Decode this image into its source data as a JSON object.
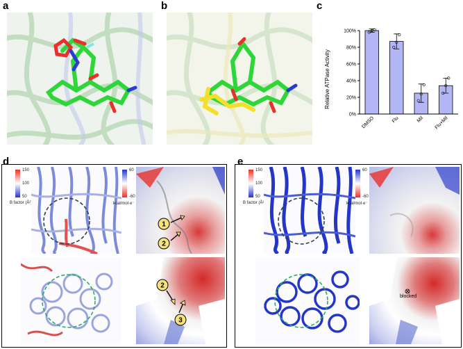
{
  "panels": {
    "a": {
      "label": "a"
    },
    "b": {
      "label": "b"
    },
    "c": {
      "label": "c"
    },
    "d": {
      "label": "d"
    },
    "e": {
      "label": "e"
    }
  },
  "chart_data": {
    "type": "bar",
    "categories": [
      "DMSO",
      "Flu",
      "Mil",
      "Flu+Mil"
    ],
    "values": [
      100,
      87,
      25,
      34
    ],
    "errors": [
      2,
      9,
      11,
      9
    ],
    "points": [
      [
        98,
        100,
        101
      ],
      [
        80,
        86,
        95
      ],
      [
        16,
        24,
        35
      ],
      [
        25,
        34,
        43
      ]
    ],
    "ylabel": "Relative ATPase Activity",
    "yticks": [
      "0%",
      "20%",
      "40%",
      "60%",
      "80%",
      "100%"
    ],
    "ylim": [
      0,
      100
    ],
    "bar_color": "#b3b6f5",
    "grid": false,
    "legend": "none"
  },
  "scales": {
    "d": {
      "bfactor_max": "150",
      "bfactor_mid": "100",
      "bfactor_min": "50",
      "bfactor_title": "B factor (Å²)",
      "elec_max": "60",
      "elec_min": "-60",
      "elec_unit": "kcal/mol·e⁻"
    },
    "e": {
      "bfactor_max": "150",
      "bfactor_mid": "100",
      "bfactor_min": "50",
      "bfactor_title": "B factor (Å²)",
      "elec_max": "60",
      "elec_min": "-60",
      "elec_unit": "kcal/mol·e⁻"
    }
  },
  "markers": {
    "one": "1",
    "two": "2",
    "three": "3",
    "blocked": "blocked"
  },
  "colors": {
    "pos": "#2436c8",
    "neg": "#d4242a",
    "neutral": "#f2f2f2",
    "ligand_green": "#2fd63a",
    "ligand_yellow": "#f2e02a"
  }
}
